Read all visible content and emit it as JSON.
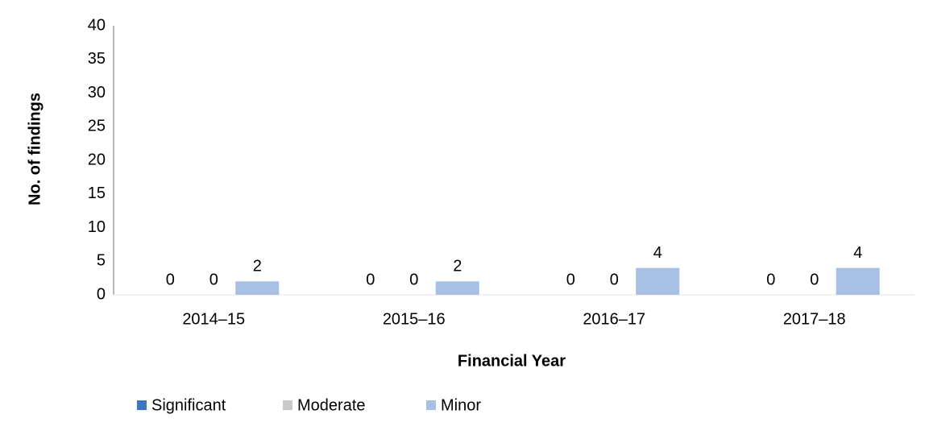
{
  "chart_data": {
    "type": "bar",
    "x_label": "Financial Year",
    "y_label": "No. of findings",
    "categories": [
      "2014–15",
      "2015–16",
      "2016–17",
      "2017–18"
    ],
    "series": [
      {
        "name": "Significant",
        "color": "#3f77bf",
        "values": [
          0,
          0,
          0,
          0
        ]
      },
      {
        "name": "Moderate",
        "color": "#c9c9c9",
        "values": [
          0,
          0,
          0,
          0
        ]
      },
      {
        "name": "Minor",
        "color": "#a7c0e3",
        "values": [
          2,
          2,
          4,
          4
        ]
      }
    ],
    "ylim": [
      0,
      40
    ],
    "yticks": [
      0,
      5,
      10,
      15,
      20,
      25,
      30,
      35,
      40
    ],
    "grid": false,
    "legend": "bottom"
  }
}
